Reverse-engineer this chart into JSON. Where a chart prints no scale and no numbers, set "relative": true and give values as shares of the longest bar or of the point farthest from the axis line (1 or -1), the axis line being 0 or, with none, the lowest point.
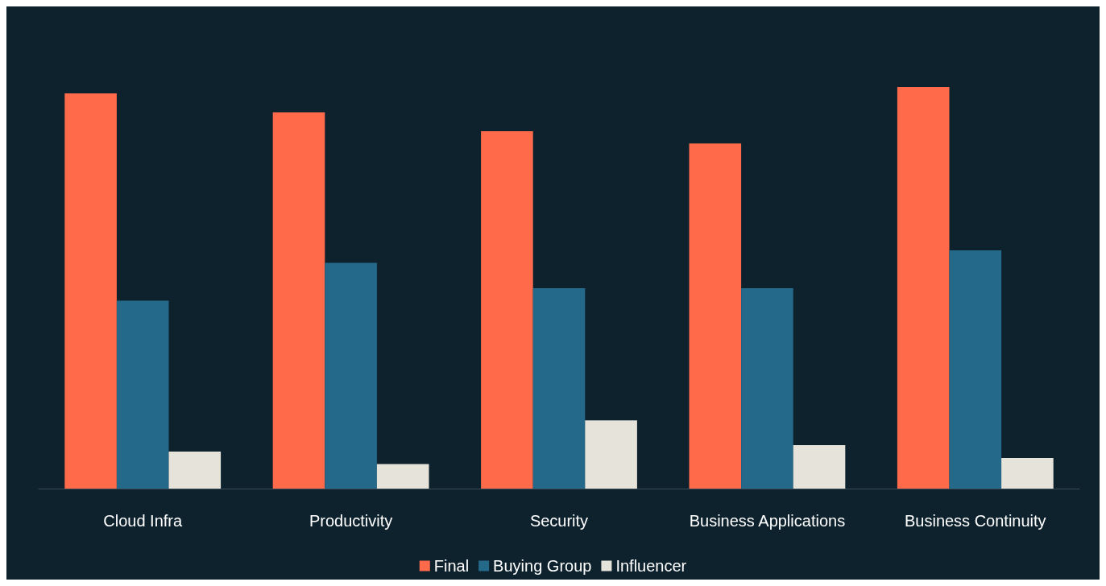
{
  "chart_data": {
    "type": "bar",
    "relative": true,
    "legend": "bottom",
    "categories": [
      "Cloud Infra",
      "Productivity",
      "Security",
      "Business Applications",
      "Business Continuity"
    ],
    "series": [
      {
        "name": "Final",
        "color": "#ff6b4a",
        "values": [
          0.984,
          0.937,
          0.89,
          0.859,
          1
        ]
      },
      {
        "name": "Buying Group",
        "color": "#24688a",
        "values": [
          0.468,
          0.562,
          0.499,
          0.499,
          0.593
        ]
      },
      {
        "name": "Influencer",
        "color": "#e6e4da",
        "values": [
          0.092,
          0.061,
          0.17,
          0.108,
          0.076
        ]
      }
    ]
  }
}
